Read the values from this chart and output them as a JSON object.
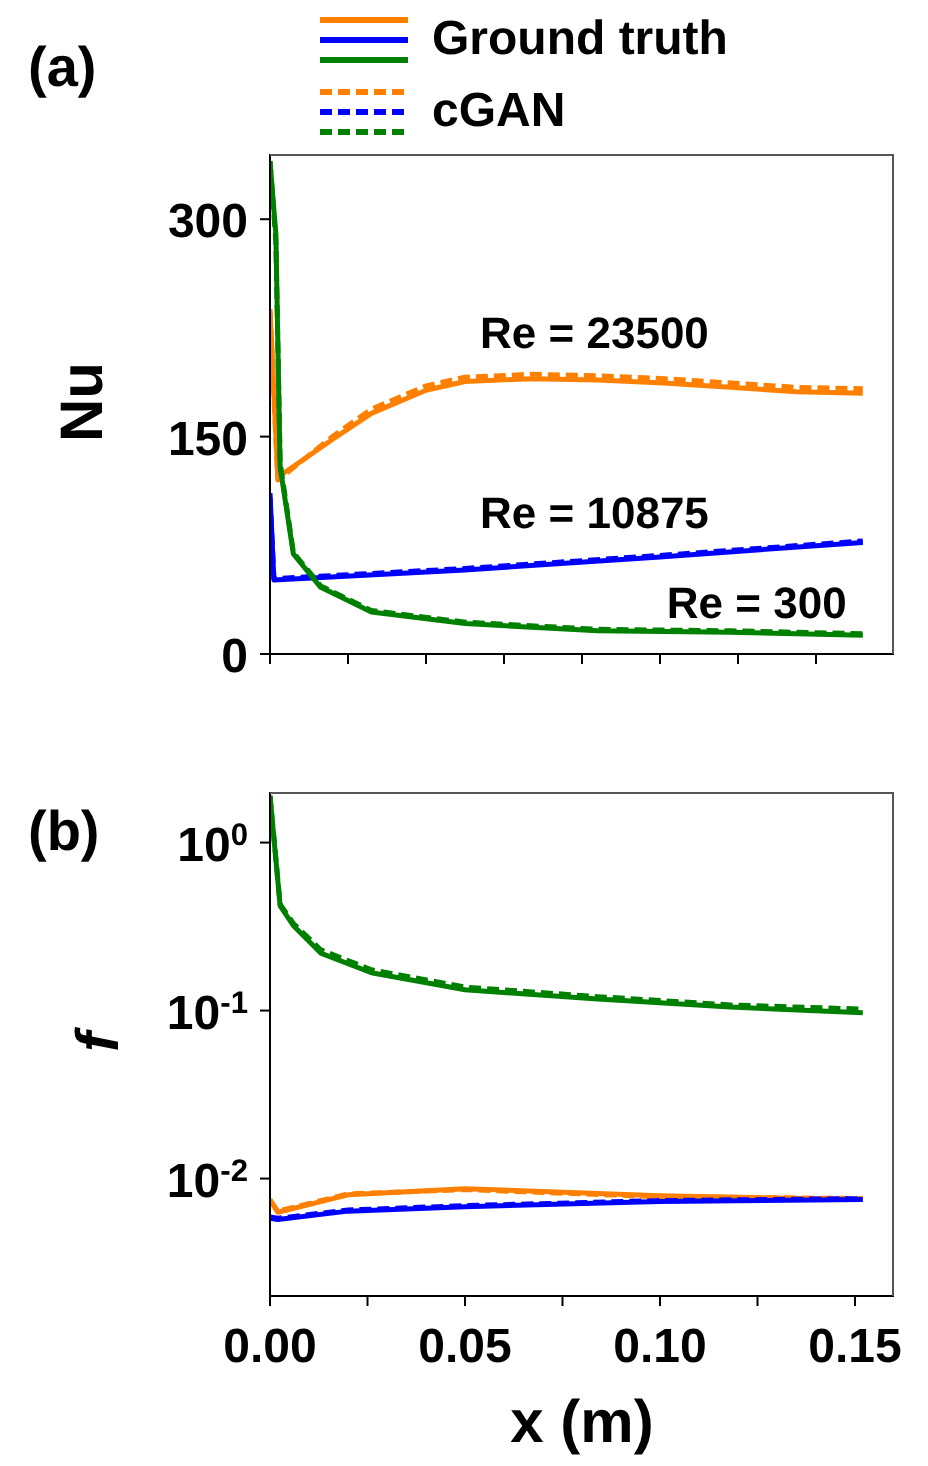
{
  "chart_data": [
    {
      "type": "line",
      "title": "(a)",
      "ylabel": "Nu",
      "xlim": [
        0,
        0.16
      ],
      "xticks": [
        0,
        0.02,
        0.04,
        0.06,
        0.08,
        0.1,
        0.12,
        0.14
      ],
      "ylim": [
        0,
        345
      ],
      "yticks": [
        0,
        150,
        300
      ],
      "tick_labels": "y",
      "legend": "top",
      "series": [
        {
          "name": "Ground truth",
          "color": "#ff8000",
          "line_style": "solid",
          "x": [
            0,
            0.002,
            0.016,
            0.026,
            0.04,
            0.05,
            0.067,
            0.084,
            0.101,
            0.118,
            0.135,
            0.152
          ],
          "values": [
            238,
            122,
            148,
            166,
            182,
            188,
            190,
            189,
            187,
            184,
            181,
            180
          ]
        },
        {
          "name": "cGAN",
          "color": "#ff8000",
          "line_style": "dashed",
          "x": [
            0,
            0.002,
            0.016,
            0.026,
            0.04,
            0.05,
            0.067,
            0.084,
            0.101,
            0.118,
            0.135,
            0.152
          ],
          "values": [
            236,
            120,
            150,
            169,
            185,
            191,
            193,
            192,
            190,
            187,
            184,
            183
          ]
        },
        {
          "color": "#0000ff",
          "line_style": "solid",
          "x": [
            0,
            0.001,
            0.05,
            0.1,
            0.152
          ],
          "values": [
            111,
            51,
            58,
            67,
            77
          ]
        },
        {
          "color": "#0000ff",
          "line_style": "dashed",
          "x": [
            0,
            0.001,
            0.05,
            0.1,
            0.152
          ],
          "values": [
            108,
            52,
            59,
            68,
            78
          ]
        },
        {
          "color": "#008000",
          "line_style": "solid",
          "x": [
            0,
            0.0015,
            0.0026,
            0.006,
            0.013,
            0.026,
            0.05,
            0.084,
            0.118,
            0.152
          ],
          "values": [
            340,
            290,
            129,
            69,
            46,
            29,
            21,
            16,
            15,
            13
          ]
        },
        {
          "color": "#008000",
          "line_style": "dashed",
          "x": [
            0,
            0.0015,
            0.0026,
            0.006,
            0.013,
            0.026,
            0.05,
            0.084,
            0.118,
            0.152
          ],
          "values": [
            340,
            285,
            132,
            70,
            47,
            30,
            22,
            17,
            16,
            14
          ]
        }
      ],
      "annotations": [
        "Re = 23500",
        "Re = 10875",
        "Re = 300"
      ]
    },
    {
      "type": "line",
      "title": "(b)",
      "ylabel": "f",
      "xlabel": "x (m)",
      "log": "y",
      "xlim": [
        0,
        0.16
      ],
      "xticks": [
        {
          "value": 0,
          "label": "0.00"
        },
        {
          "value": 0.025,
          "label": null
        },
        {
          "value": 0.05,
          "label": "0.05"
        },
        {
          "value": 0.075,
          "label": null
        },
        {
          "value": 0.1,
          "label": "0.10"
        },
        {
          "value": 0.125,
          "label": null
        },
        {
          "value": 0.15,
          "label": "0.15"
        }
      ],
      "ylim": [
        0.002,
        2
      ],
      "yticks": [
        {
          "value": 0.01,
          "label": "10$^{-2}$"
        },
        {
          "value": 0.1,
          "label": "10$^{-1}$"
        },
        {
          "value": 1,
          "label": "10$^{0}$"
        }
      ],
      "series": [
        {
          "color": "#ff8000",
          "line_style": "solid",
          "x": [
            0,
            0.002,
            0.02,
            0.05,
            0.1,
            0.152
          ],
          "values": [
            0.0075,
            0.0063,
            0.008,
            0.0087,
            0.0079,
            0.0075
          ]
        },
        {
          "color": "#ff8000",
          "line_style": "dashed",
          "x": [
            0,
            0.002,
            0.02,
            0.05,
            0.1,
            0.152
          ],
          "values": [
            0.0074,
            0.0064,
            0.0081,
            0.0086,
            0.0078,
            0.0076
          ]
        },
        {
          "color": "#0000ff",
          "line_style": "solid",
          "x": [
            0,
            0.002,
            0.02,
            0.05,
            0.1,
            0.152
          ],
          "values": [
            0.0058,
            0.0057,
            0.0064,
            0.0068,
            0.0073,
            0.0075
          ]
        },
        {
          "color": "#0000ff",
          "line_style": "dashed",
          "x": [
            0,
            0.002,
            0.02,
            0.05,
            0.1,
            0.152
          ],
          "values": [
            0.0059,
            0.0058,
            0.0065,
            0.0069,
            0.0074,
            0.0076
          ]
        },
        {
          "color": "#008000",
          "line_style": "solid",
          "x": [
            0,
            0.0026,
            0.006,
            0.013,
            0.026,
            0.05,
            0.084,
            0.118,
            0.152
          ],
          "values": [
            1.9,
            0.42,
            0.32,
            0.22,
            0.168,
            0.133,
            0.117,
            0.105,
            0.097
          ]
        },
        {
          "color": "#008000",
          "line_style": "dashed",
          "x": [
            0,
            0.0026,
            0.006,
            0.013,
            0.026,
            0.05,
            0.084,
            0.118,
            0.152
          ],
          "values": [
            1.9,
            0.43,
            0.33,
            0.23,
            0.175,
            0.138,
            0.121,
            0.108,
            0.102
          ]
        }
      ]
    }
  ]
}
